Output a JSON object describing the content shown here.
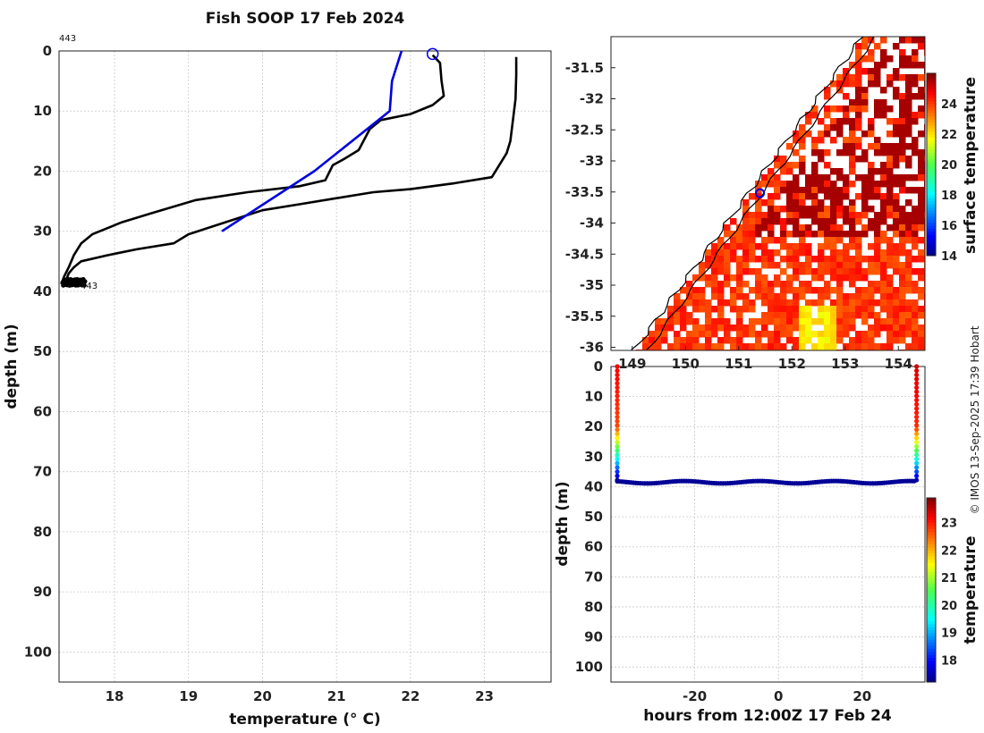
{
  "title": "Fish SOOP 17 Feb 2024",
  "credit": "© IMOS 13-Sep-2025 17:39 Hobart",
  "colors": {
    "profile": "#000000",
    "reference": "#0000dd",
    "coast": "#000000"
  },
  "chart_data": [
    {
      "type": "line",
      "name": "profile",
      "xlabel": "temperature (° C)",
      "ylabel": "depth (m)",
      "xlim": [
        17.25,
        23.9
      ],
      "ylim": [
        105,
        0
      ],
      "xticks": [
        18,
        19,
        20,
        21,
        22,
        23
      ],
      "yticks": [
        0,
        10,
        20,
        30,
        40,
        50,
        60,
        70,
        80,
        90,
        100
      ],
      "annotations": [
        "443",
        "443"
      ],
      "marker_top": {
        "x": 22.3,
        "y": 0.5
      },
      "series": [
        {
          "color": "black",
          "points": [
            [
              23.43,
              1
            ],
            [
              23.43,
              4
            ],
            [
              23.42,
              8
            ],
            [
              23.38,
              12
            ],
            [
              23.35,
              15
            ],
            [
              23.3,
              17
            ],
            [
              23.1,
              21
            ],
            [
              22.6,
              22
            ],
            [
              22.0,
              23
            ],
            [
              21.5,
              23.5
            ],
            [
              21.0,
              24.5
            ],
            [
              20.5,
              25.5
            ],
            [
              20.0,
              26.5
            ],
            [
              19.5,
              28.5
            ],
            [
              19.0,
              30.5
            ],
            [
              18.8,
              32
            ],
            [
              18.3,
              33
            ],
            [
              17.9,
              34
            ],
            [
              17.55,
              35
            ],
            [
              17.45,
              36
            ],
            [
              17.38,
              37
            ],
            [
              17.35,
              38
            ],
            [
              17.3,
              38.8
            ]
          ]
        },
        {
          "color": "black",
          "points": [
            [
              22.3,
              0.7
            ],
            [
              22.4,
              2
            ],
            [
              22.42,
              5
            ],
            [
              22.45,
              7.5
            ],
            [
              22.3,
              9
            ],
            [
              22.0,
              10.5
            ],
            [
              21.6,
              11.5
            ],
            [
              21.45,
              13
            ],
            [
              21.3,
              16.5
            ],
            [
              21.1,
              18
            ],
            [
              20.95,
              19
            ],
            [
              20.85,
              21.5
            ],
            [
              20.5,
              22.5
            ],
            [
              19.8,
              23.5
            ],
            [
              19.1,
              24.8
            ],
            [
              18.5,
              27
            ],
            [
              18.1,
              28.5
            ],
            [
              17.7,
              30.5
            ],
            [
              17.55,
              32
            ],
            [
              17.45,
              34
            ],
            [
              17.38,
              36
            ],
            [
              17.32,
              37.5
            ],
            [
              17.28,
              38.8
            ]
          ]
        },
        {
          "color": "blue",
          "points": [
            [
              21.88,
              0
            ],
            [
              21.75,
              5
            ],
            [
              21.72,
              10
            ],
            [
              20.7,
              20
            ],
            [
              19.45,
              30
            ]
          ]
        }
      ]
    },
    {
      "type": "heatmap",
      "name": "map",
      "colorbar_label": "surface temperature",
      "colorbar_range": [
        14,
        26
      ],
      "colorbar_ticks": [
        14,
        16,
        18,
        20,
        22,
        24
      ],
      "xlim": [
        148.6,
        154.5
      ],
      "ylim": [
        -36.05,
        -31.0
      ],
      "xticks": [
        149,
        150,
        151,
        152,
        153,
        154
      ],
      "yticks": [
        -31.5,
        -32,
        -32.5,
        -33,
        -33.5,
        -34,
        -34.5,
        -35,
        -35.5,
        -36
      ],
      "marker": {
        "lon": 151.4,
        "lat": -33.52
      }
    },
    {
      "type": "scatter",
      "name": "section",
      "xlabel": "hours from 12:00Z 17 Feb 24",
      "ylabel": "depth (m)",
      "colorbar_label": "temperature",
      "colorbar_range": [
        17.2,
        23.9
      ],
      "colorbar_ticks": [
        18,
        19,
        20,
        21,
        22,
        23
      ],
      "xlim": [
        -40,
        35
      ],
      "ylim": [
        105,
        0
      ],
      "xticks": [
        -20,
        0,
        20
      ],
      "yticks": [
        0,
        10,
        20,
        30,
        40,
        50,
        60,
        70,
        80,
        90,
        100
      ],
      "cast_times": [
        -38.5,
        33
      ],
      "bottom_depth": 38.5
    }
  ]
}
